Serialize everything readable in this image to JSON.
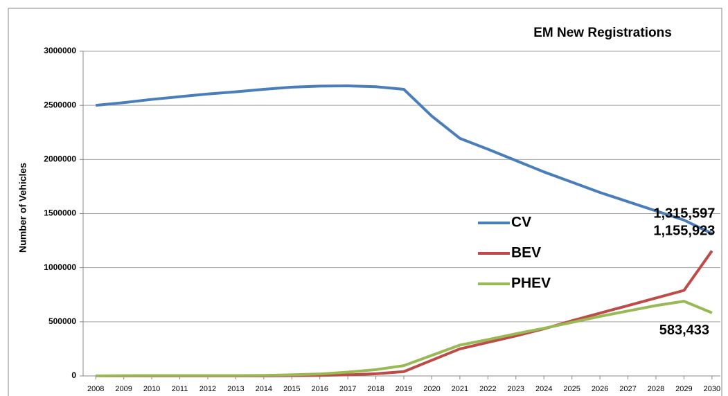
{
  "chart_data": {
    "type": "line",
    "title": "EM New Registrations",
    "y_label": "Number of Vehicles",
    "x": [
      2008,
      2009,
      2010,
      2011,
      2012,
      2013,
      2014,
      2015,
      2016,
      2017,
      2018,
      2019,
      2020,
      2021,
      2022,
      2023,
      2024,
      2025,
      2026,
      2027,
      2028,
      2029,
      2030
    ],
    "xlim": [
      2007.55,
      2030.3
    ],
    "xticks": [
      2008,
      2009,
      2010,
      2011,
      2012,
      2013,
      2014,
      2015,
      2016,
      2017,
      2018,
      2019,
      2020,
      2021,
      2022,
      2023,
      2024,
      2025,
      2026,
      2027,
      2028,
      2029,
      2030
    ],
    "ylim": [
      0,
      3000000
    ],
    "yticks": [
      0,
      500000,
      1000000,
      1500000,
      2000000,
      2500000,
      3000000
    ],
    "grid": true,
    "series": [
      {
        "name": "CV",
        "color": "#4a7ebb",
        "values": [
          2500000,
          2525000,
          2555000,
          2580000,
          2605000,
          2625000,
          2648000,
          2668000,
          2678000,
          2680000,
          2672000,
          2648000,
          2400000,
          2195000,
          2095000,
          1990000,
          1885000,
          1790000,
          1695000,
          1610000,
          1525000,
          1440000,
          1315597
        ],
        "value_labels": [
          null,
          null,
          null,
          null,
          null,
          null,
          null,
          null,
          null,
          null,
          null,
          null,
          null,
          null,
          null,
          null,
          null,
          null,
          null,
          null,
          null,
          null,
          "1,315,597"
        ]
      },
      {
        "name": "BEV",
        "color": "#be4b48",
        "values": [
          0,
          0,
          0,
          0,
          0,
          0,
          0,
          2000,
          5000,
          10000,
          20000,
          40000,
          145000,
          250000,
          310000,
          370000,
          435000,
          510000,
          580000,
          650000,
          720000,
          790000,
          1155923
        ],
        "value_labels": [
          null,
          null,
          null,
          null,
          null,
          null,
          null,
          null,
          null,
          null,
          null,
          null,
          null,
          null,
          null,
          null,
          null,
          null,
          null,
          null,
          null,
          null,
          "1,155,923"
        ]
      },
      {
        "name": "PHEV",
        "color": "#98b954",
        "values": [
          0,
          2000,
          3000,
          3000,
          3000,
          3000,
          5000,
          10000,
          18000,
          35000,
          58000,
          95000,
          190000,
          285000,
          335000,
          390000,
          440000,
          495000,
          550000,
          600000,
          650000,
          690000,
          583433
        ],
        "value_labels": [
          null,
          null,
          null,
          null,
          null,
          null,
          null,
          null,
          null,
          null,
          null,
          null,
          null,
          null,
          null,
          null,
          null,
          null,
          null,
          null,
          null,
          null,
          "583,433"
        ]
      }
    ]
  }
}
